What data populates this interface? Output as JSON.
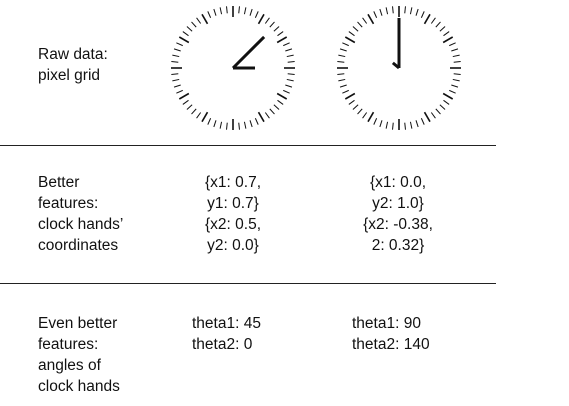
{
  "rows": [
    {
      "label": "Raw data:\npixel grid"
    },
    {
      "label": "Better\nfeatures:\nclock hands’\ncoordinates"
    },
    {
      "label": "Even better\nfeatures:\nangles of\nclock hands"
    }
  ],
  "clocks": [
    {
      "coords": "{x1: 0.7,\ny1: 0.7}\n{x2: 0.5,\ny2: 0.0}",
      "angles": "theta1: 45\ntheta2: 0",
      "hand1_deg": 45,
      "hand2_deg": 0
    },
    {
      "coords": "{x1: 0.0,\ny2: 1.0}\n{x2: -0.38,\n2: 0.32}",
      "angles": "theta1: 90\ntheta2: 140",
      "hand1_deg": 90,
      "hand2_deg": 140
    }
  ]
}
